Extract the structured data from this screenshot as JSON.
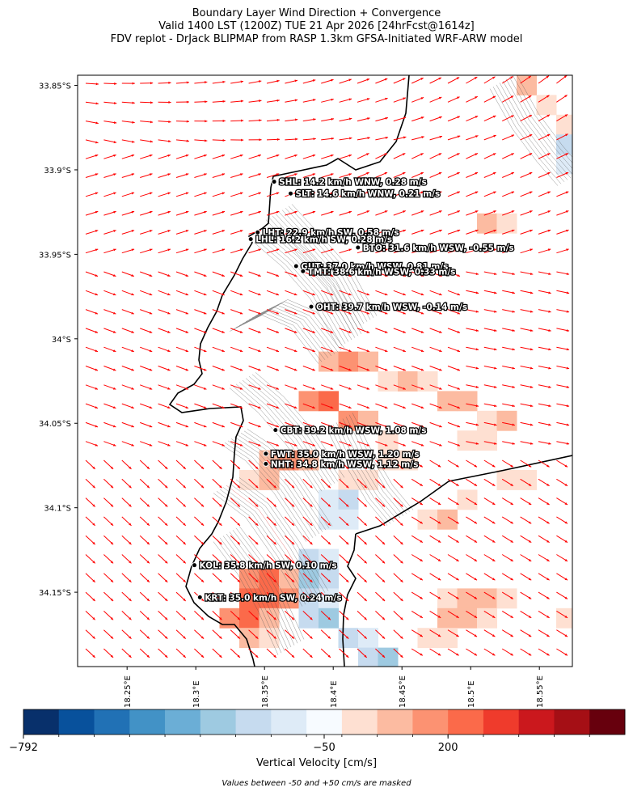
{
  "chart_data": {
    "type": "heatmap",
    "title": [
      "Boundary Layer Wind Direction + Convergence",
      "Valid 1400 LST (1200Z) TUE 21 Apr 2026 [24hrFcst@1614z]",
      "FDV replot - DrJack BLIPMAP from RASP 1.3km GFSA-Initiated WRF-ARW model"
    ],
    "x_axis": {
      "range": [
        18.214,
        18.574
      ],
      "ticks": [
        18.25,
        18.3,
        18.35,
        18.4,
        18.45,
        18.5,
        18.55
      ],
      "tick_labels": [
        "18.25°E",
        "18.3°E",
        "18.35°E",
        "18.4°E",
        "18.45°E",
        "18.5°E",
        "18.55°E"
      ]
    },
    "y_axis": {
      "range": [
        -34.194,
        -33.844
      ],
      "ticks": [
        -33.85,
        -33.9,
        -33.95,
        -34.0,
        -34.05,
        -34.1,
        -34.15
      ],
      "tick_labels": [
        "33.85°S",
        "33.9°S",
        "33.95°S",
        "34°S",
        "34.05°S",
        "34.1°S",
        "34.15°S"
      ]
    },
    "colorbar": {
      "label": "Vertical Velocity [cm/s]",
      "ticks": [
        -792,
        -50,
        200
      ],
      "tick_labels": [
        "−792",
        "−50",
        "200"
      ],
      "colors": [
        "#08306b",
        "#08519c",
        "#2171b5",
        "#4292c6",
        "#6baed6",
        "#9ecae1",
        "#c6dbef",
        "#deebf7",
        "#f7fbff",
        "#fee0d2",
        "#fcbba1",
        "#fc9272",
        "#fb6a4a",
        "#ef3b2c",
        "#cb181d",
        "#a50f15",
        "#67000d"
      ],
      "mask_note": "Values between -50 and +50 cm/s are masked"
    },
    "wind_vector_color": "#ff0000",
    "coastline_color": "#000000",
    "stations": [
      {
        "code": "SHL",
        "label": "SHL: 14.2 km/h WNW, 0.28 m/s",
        "lon": 18.357,
        "lat": -33.907
      },
      {
        "code": "SLT",
        "label": "SLT: 14.6 km/h WNW, 0.21 m/s",
        "lon": 18.369,
        "lat": -33.914
      },
      {
        "code": "LHT",
        "label": "LHT: 22.9 km/h SW, 0.58 m/s",
        "lon": 18.345,
        "lat": -33.937
      },
      {
        "code": "LHL",
        "label": "LHL: 16.2 km/h SW, 0.28 m/s",
        "lon": 18.34,
        "lat": -33.941
      },
      {
        "code": "BTO",
        "label": "BTO: 31.6 km/h WSW, -0.55 m/s",
        "lon": 18.418,
        "lat": -33.946
      },
      {
        "code": "GUT",
        "label": "GUT: 37.0 km/h WSW, 0.81 m/s",
        "lon": 18.373,
        "lat": -33.957
      },
      {
        "code": "TMT",
        "label": "TMT: 38.6 km/h WSW, 0.33 m/s",
        "lon": 18.378,
        "lat": -33.96
      },
      {
        "code": "OHT",
        "label": "OHT: 39.7 km/h WSW, -0.14 m/s",
        "lon": 18.384,
        "lat": -33.981
      },
      {
        "code": "CBT",
        "label": "CBT: 39.2 km/h WSW, 1.08 m/s",
        "lon": 18.358,
        "lat": -34.054
      },
      {
        "code": "FWT",
        "label": "FWT: 35.0 km/h WSW, 1.20 m/s",
        "lon": 18.351,
        "lat": -34.068
      },
      {
        "code": "NHT",
        "label": "NHT: 34.8 km/h WSW, 1.12 m/s",
        "lon": 18.351,
        "lat": -34.074
      },
      {
        "code": "KOL",
        "label": "KOL: 35.8 km/h SW, 0.10 m/s",
        "lon": 18.299,
        "lat": -34.134
      },
      {
        "code": "KRT",
        "label": "KRT: 35.0 km/h SW, 0.24 m/s",
        "lon": 18.303,
        "lat": -34.153
      }
    ]
  }
}
